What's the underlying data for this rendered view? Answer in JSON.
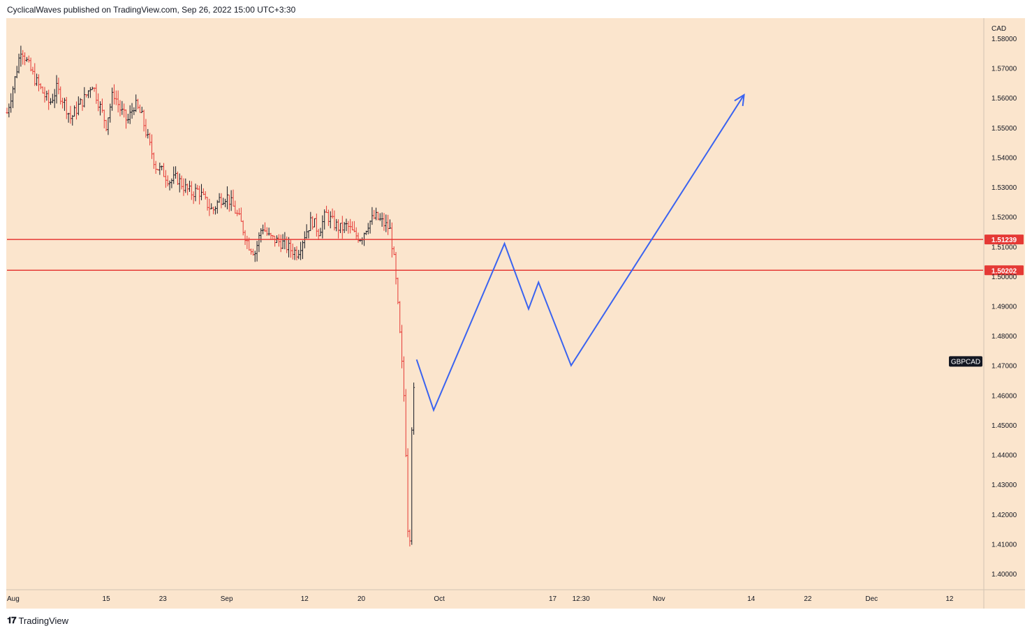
{
  "header": {
    "published_text": "CyclicalWaves published on TradingView.com, Sep 26, 2022 15:00 UTC+3:30"
  },
  "footer": {
    "brand": "TradingView"
  },
  "colors": {
    "background": "#fbe5cd",
    "candle_up": "#131722",
    "candle_down": "#e53935",
    "level_line": "#e53935",
    "projection": "#3a63f0",
    "symbol_label_bg": "#131722"
  },
  "chart_data": {
    "type": "candlestick",
    "symbol": "GBPCAD",
    "currency": "CAD",
    "ylim": [
      1.395,
      1.585
    ],
    "y_ticks": [
      "1.58000",
      "1.57000",
      "1.56000",
      "1.55000",
      "1.54000",
      "1.53000",
      "1.52000",
      "1.51000",
      "1.50000",
      "1.49000",
      "1.48000",
      "1.47000",
      "1.46000",
      "1.45000",
      "1.44000",
      "1.43000",
      "1.42000",
      "1.41000",
      "1.40000"
    ],
    "x_ticks": [
      {
        "label": "Aug",
        "day": 0
      },
      {
        "label": "15",
        "day": 14
      },
      {
        "label": "23",
        "day": 22
      },
      {
        "label": "Sep",
        "day": 31
      },
      {
        "label": "12",
        "day": 42
      },
      {
        "label": "20",
        "day": 50
      },
      {
        "label": "Oct",
        "day": 61
      },
      {
        "label": "17",
        "day": 77
      },
      {
        "label": "12:30",
        "day": 81
      },
      {
        "label": "Nov",
        "day": 92
      },
      {
        "label": "14",
        "day": 105
      },
      {
        "label": "22",
        "day": 113
      },
      {
        "label": "Dec",
        "day": 122
      },
      {
        "label": "12",
        "day": 133
      }
    ],
    "levels": [
      {
        "label": "1.51239",
        "value": 1.51239
      },
      {
        "label": "1.50202",
        "value": 1.50202
      }
    ],
    "price_path": [
      [
        0,
        1.555
      ],
      [
        1,
        1.565
      ],
      [
        2,
        1.577
      ],
      [
        3,
        1.571
      ],
      [
        4,
        1.566
      ],
      [
        5,
        1.562
      ],
      [
        6,
        1.558
      ],
      [
        7,
        1.563
      ],
      [
        8,
        1.559
      ],
      [
        9,
        1.553
      ],
      [
        10,
        1.557
      ],
      [
        11,
        1.56
      ],
      [
        12,
        1.565
      ],
      [
        13,
        1.558
      ],
      [
        14,
        1.551
      ],
      [
        15,
        1.562
      ],
      [
        16,
        1.556
      ],
      [
        17,
        1.552
      ],
      [
        18,
        1.558
      ],
      [
        19,
        1.554
      ],
      [
        20,
        1.545
      ],
      [
        21,
        1.537
      ],
      [
        22,
        1.535
      ],
      [
        23,
        1.532
      ],
      [
        24,
        1.533
      ],
      [
        25,
        1.53
      ],
      [
        26,
        1.528
      ],
      [
        27,
        1.529
      ],
      [
        28,
        1.525
      ],
      [
        29,
        1.522
      ],
      [
        30,
        1.526
      ],
      [
        31,
        1.527
      ],
      [
        32,
        1.523
      ],
      [
        33,
        1.518
      ],
      [
        34,
        1.511
      ],
      [
        35,
        1.508
      ],
      [
        36,
        1.517
      ],
      [
        37,
        1.513
      ],
      [
        38,
        1.512
      ],
      [
        39,
        1.511
      ],
      [
        40,
        1.509
      ],
      [
        41,
        1.508
      ],
      [
        42,
        1.514
      ],
      [
        43,
        1.519
      ],
      [
        44,
        1.515
      ],
      [
        45,
        1.521
      ],
      [
        46,
        1.518
      ],
      [
        47,
        1.516
      ],
      [
        48,
        1.517
      ],
      [
        49,
        1.514
      ],
      [
        50,
        1.513
      ],
      [
        51,
        1.518
      ],
      [
        52,
        1.52
      ],
      [
        53,
        1.518
      ],
      [
        54,
        1.516
      ],
      [
        54.5,
        1.508
      ],
      [
        55,
        1.495
      ],
      [
        55.5,
        1.478
      ],
      [
        56,
        1.46
      ],
      [
        56.3,
        1.44
      ],
      [
        56.6,
        1.412
      ],
      [
        56.8,
        1.405
      ],
      [
        57,
        1.445
      ],
      [
        57.5,
        1.465
      ]
    ],
    "projection_path": [
      [
        57.8,
        1.472
      ],
      [
        60.2,
        1.455
      ],
      [
        70.2,
        1.511
      ],
      [
        73.6,
        1.489
      ],
      [
        75,
        1.498
      ],
      [
        79.6,
        1.47
      ],
      [
        104,
        1.561
      ]
    ],
    "projection_label": "GBPCAD"
  }
}
